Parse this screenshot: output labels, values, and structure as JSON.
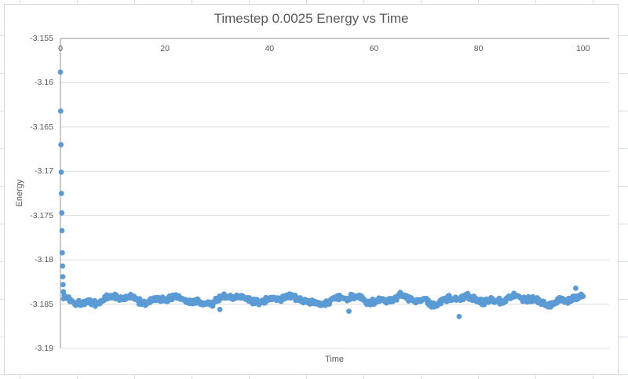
{
  "colors": {
    "accent": "#5B9BD5",
    "text": "#595959",
    "gridline": "#DCDCDC",
    "axis_line": "#A6A6A6",
    "sheet_gridline": "#D8DEE6",
    "chart_border": "#D9D9D9",
    "chart_background": "#FFFFFF"
  },
  "chart_data": {
    "type": "scatter",
    "title": "Timestep 0.0025 Energy vs Time",
    "xlabel": "Time",
    "ylabel": "Energy",
    "legend": "none",
    "grid": "horizontal-only",
    "x_axis": {
      "min": 0,
      "max": 105,
      "tick_interval": 20,
      "tick_values": [
        0,
        20,
        40,
        60,
        80,
        100
      ],
      "tick_labels": [
        "0",
        "20",
        "40",
        "60",
        "80",
        "100"
      ]
    },
    "y_axis": {
      "min": -3.19,
      "max": -3.155,
      "tick_interval": 0.005,
      "tick_values": [
        -3.155,
        -3.16,
        -3.165,
        -3.17,
        -3.175,
        -3.18,
        -3.185,
        -3.19
      ],
      "tick_labels": [
        "-3.155",
        "-3.16",
        "-3.165",
        "-3.17",
        "-3.175",
        "-3.18",
        "-3.185",
        "-3.19"
      ]
    },
    "marker": {
      "color": "#5B9BD5",
      "radius_px": 3.4
    },
    "series": [
      {
        "name": "Energy",
        "initial_transient_points": [
          [
            0.0,
            -3.1588
          ],
          [
            0.05,
            -3.1632
          ],
          [
            0.1,
            -3.167
          ],
          [
            0.15,
            -3.1701
          ],
          [
            0.2,
            -3.1725
          ],
          [
            0.25,
            -3.1747
          ],
          [
            0.3,
            -3.1767
          ],
          [
            0.35,
            -3.1792
          ],
          [
            0.4,
            -3.1807
          ],
          [
            0.45,
            -3.1819
          ],
          [
            0.5,
            -3.1828
          ],
          [
            0.55,
            -3.1836
          ]
        ],
        "equilibrium_band": {
          "t_start": 0.6,
          "t_end": 100,
          "n_points": 820,
          "mean_energy": -3.1845,
          "waves": [
            {
              "amplitude": 0.0003,
              "period": 11.0,
              "phase": 1.7
            },
            {
              "amplitude": 0.00018,
              "period": 4.3,
              "phase": 0.4
            },
            {
              "amplitude": 0.00012,
              "period": 23.0,
              "phase": 3.9
            }
          ],
          "jitter_amplitude": 0.00038,
          "seed": 1337
        },
        "outlier_points": [
          [
            76.3,
            -3.1864
          ],
          [
            55.2,
            -3.1858
          ],
          [
            30.5,
            -3.1856
          ],
          [
            98.6,
            -3.1832
          ]
        ]
      }
    ]
  }
}
